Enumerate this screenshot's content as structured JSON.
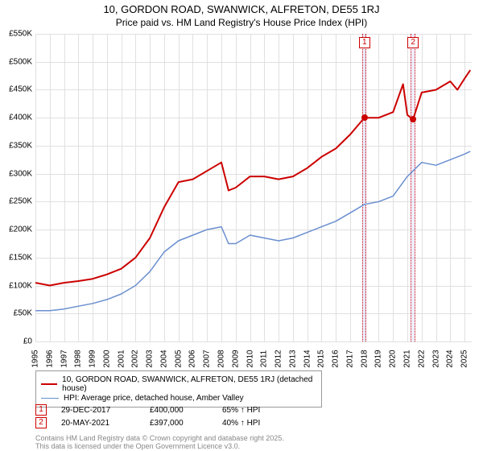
{
  "title": "10, GORDON ROAD, SWANWICK, ALFRETON, DE55 1RJ",
  "subtitle": "Price paid vs. HM Land Registry's House Price Index (HPI)",
  "chart": {
    "type": "line",
    "background_color": "#ffffff",
    "grid_color": "#e0e0e0",
    "xlim": [
      1995,
      2025.5
    ],
    "ylim": [
      0,
      550000
    ],
    "ytick_step": 50000,
    "yticks": [
      "£0",
      "£50K",
      "£100K",
      "£150K",
      "£200K",
      "£250K",
      "£300K",
      "£350K",
      "£400K",
      "£450K",
      "£500K",
      "£550K"
    ],
    "xticks": [
      "1995",
      "1996",
      "1997",
      "1998",
      "1999",
      "2000",
      "2001",
      "2002",
      "2003",
      "2004",
      "2005",
      "2006",
      "2007",
      "2008",
      "2009",
      "2010",
      "2011",
      "2012",
      "2013",
      "2014",
      "2015",
      "2016",
      "2017",
      "2018",
      "2019",
      "2020",
      "2021",
      "2022",
      "2023",
      "2024",
      "2025"
    ],
    "series": [
      {
        "name": "property",
        "label": "10, GORDON ROAD, SWANWICK, ALFRETON, DE55 1RJ (detached house)",
        "color": "#cc0000",
        "line_width": 2,
        "x": [
          1995,
          1996,
          1997,
          1998,
          1999,
          2000,
          2001,
          2002,
          2003,
          2004,
          2005,
          2006,
          2007,
          2008,
          2008.5,
          2009,
          2010,
          2011,
          2012,
          2013,
          2014,
          2015,
          2016,
          2017,
          2018,
          2019,
          2020,
          2020.7,
          2021,
          2021.4,
          2022,
          2023,
          2024,
          2024.5,
          2025,
          2025.4
        ],
        "y": [
          105000,
          100000,
          105000,
          108000,
          112000,
          120000,
          130000,
          150000,
          185000,
          240000,
          285000,
          290000,
          305000,
          320000,
          270000,
          275000,
          295000,
          295000,
          290000,
          295000,
          310000,
          330000,
          345000,
          370000,
          400000,
          400000,
          410000,
          460000,
          405000,
          397000,
          445000,
          450000,
          465000,
          450000,
          470000,
          485000
        ]
      },
      {
        "name": "hpi",
        "label": "HPI: Average price, detached house, Amber Valley",
        "color": "#6a8fd0",
        "line_width": 1.5,
        "x": [
          1995,
          1996,
          1997,
          1998,
          1999,
          2000,
          2001,
          2002,
          2003,
          2004,
          2005,
          2006,
          2007,
          2008,
          2008.5,
          2009,
          2010,
          2011,
          2012,
          2013,
          2014,
          2015,
          2016,
          2017,
          2018,
          2019,
          2020,
          2021,
          2022,
          2023,
          2024,
          2025,
          2025.4
        ],
        "y": [
          55000,
          55000,
          58000,
          63000,
          68000,
          75000,
          85000,
          100000,
          125000,
          160000,
          180000,
          190000,
          200000,
          205000,
          175000,
          175000,
          190000,
          185000,
          180000,
          185000,
          195000,
          205000,
          215000,
          230000,
          245000,
          250000,
          260000,
          295000,
          320000,
          315000,
          325000,
          335000,
          340000
        ]
      }
    ],
    "markers": [
      {
        "idx": "1",
        "x": 2018.0,
        "y": 400000,
        "band_width_yr": 0.3
      },
      {
        "idx": "2",
        "x": 2021.4,
        "y": 397000,
        "band_width_yr": 0.3
      }
    ],
    "marker_dot_color": "#cc0000"
  },
  "legend": {
    "rows": [
      {
        "color": "#cc0000",
        "width": 2,
        "label": "10, GORDON ROAD, SWANWICK, ALFRETON, DE55 1RJ (detached house)"
      },
      {
        "color": "#6a8fd0",
        "width": 1.5,
        "label": "HPI: Average price, detached house, Amber Valley"
      }
    ]
  },
  "events": [
    {
      "idx": "1",
      "date": "29-DEC-2017",
      "price": "£400,000",
      "pct": "65% ↑ HPI"
    },
    {
      "idx": "2",
      "date": "20-MAY-2021",
      "price": "£397,000",
      "pct": "40% ↑ HPI"
    }
  ],
  "footnote_line1": "Contains HM Land Registry data © Crown copyright and database right 2025.",
  "footnote_line2": "This data is licensed under the Open Government Licence v3.0."
}
